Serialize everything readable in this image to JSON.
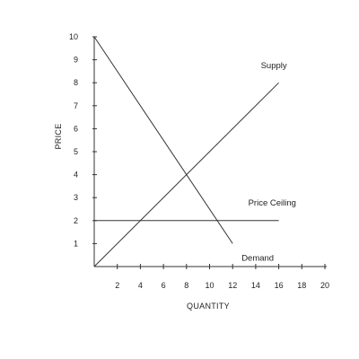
{
  "chart_data": {
    "type": "line",
    "title": "",
    "xlabel": "QUANTITY",
    "ylabel": "PRICE",
    "xlim": [
      0,
      20
    ],
    "ylim": [
      0,
      10
    ],
    "x_ticks": [
      2,
      4,
      6,
      8,
      10,
      12,
      14,
      16,
      18,
      20
    ],
    "y_ticks": [
      1,
      2,
      3,
      4,
      5,
      6,
      7,
      8,
      9,
      10
    ],
    "grid": false,
    "legend": "none",
    "line_color": "#333333",
    "series": [
      {
        "name": "Supply",
        "points": [
          [
            0,
            0
          ],
          [
            16,
            8
          ]
        ]
      },
      {
        "name": "Demand",
        "points": [
          [
            0,
            10
          ],
          [
            12,
            1
          ]
        ]
      },
      {
        "name": "Price Ceiling",
        "points": [
          [
            0,
            2
          ],
          [
            16,
            2
          ]
        ]
      }
    ]
  }
}
